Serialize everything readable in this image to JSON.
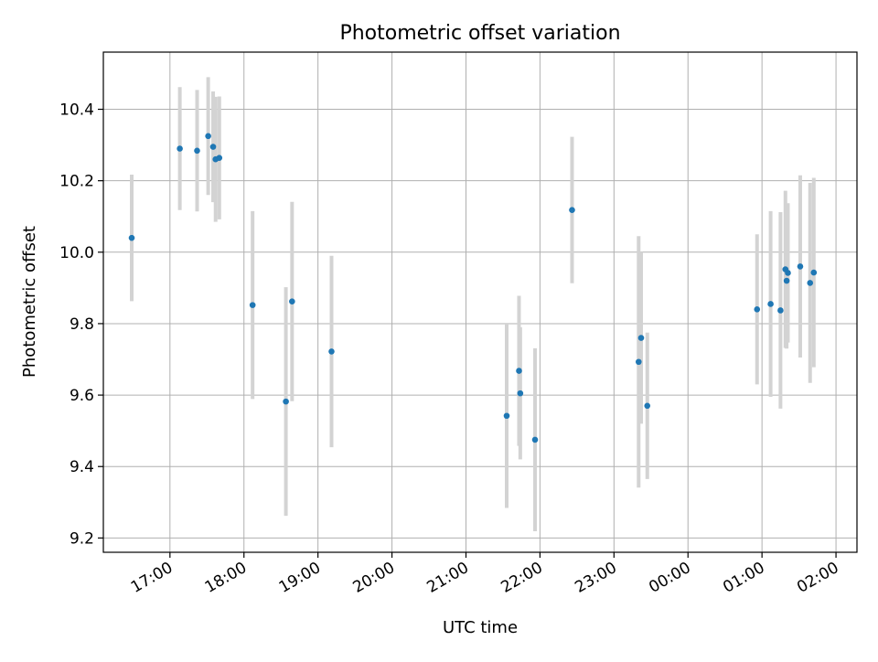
{
  "chart_data": {
    "type": "scatter",
    "title": "Photometric offset variation",
    "xlabel": "UTC time",
    "ylabel": "Photometric offset",
    "x_ticks": [
      "17:00",
      "18:00",
      "19:00",
      "20:00",
      "21:00",
      "22:00",
      "23:00",
      "00:00",
      "01:00",
      "02:00"
    ],
    "y_ticks": [
      "9.2",
      "9.4",
      "9.6",
      "9.8",
      "10.0",
      "10.2",
      "10.4"
    ],
    "xlim": [
      "16:06",
      "02:17"
    ],
    "ylim": [
      9.16,
      10.56
    ],
    "grid": true,
    "marker_color": "#1f77b4",
    "errorbar_color": "#d3d3d3",
    "points": [
      {
        "time": "16:29",
        "y": 10.04,
        "err": 0.177
      },
      {
        "time": "17:08",
        "y": 10.29,
        "err": 0.172
      },
      {
        "time": "17:22",
        "y": 10.284,
        "err": 0.17
      },
      {
        "time": "17:31",
        "y": 10.325,
        "err": 0.165
      },
      {
        "time": "17:35",
        "y": 10.295,
        "err": 0.155
      },
      {
        "time": "17:37",
        "y": 10.26,
        "err": 0.175
      },
      {
        "time": "17:40",
        "y": 10.264,
        "err": 0.172
      },
      {
        "time": "18:07",
        "y": 9.852,
        "err": 0.263
      },
      {
        "time": "18:34",
        "y": 9.582,
        "err": 0.32
      },
      {
        "time": "18:39",
        "y": 9.862,
        "err": 0.279
      },
      {
        "time": "19:11",
        "y": 9.722,
        "err": 0.268
      },
      {
        "time": "21:33",
        "y": 9.542,
        "err": 0.258
      },
      {
        "time": "21:43",
        "y": 9.668,
        "err": 0.21
      },
      {
        "time": "21:44",
        "y": 9.605,
        "err": 0.185
      },
      {
        "time": "21:56",
        "y": 9.475,
        "err": 0.256
      },
      {
        "time": "22:26",
        "y": 10.118,
        "err": 0.205
      },
      {
        "time": "23:20",
        "y": 9.693,
        "err": 0.352
      },
      {
        "time": "23:22",
        "y": 9.76,
        "err": 0.24
      },
      {
        "time": "23:27",
        "y": 9.57,
        "err": 0.205
      },
      {
        "time": "00:56",
        "y": 9.84,
        "err": 0.21
      },
      {
        "time": "01:07",
        "y": 9.855,
        "err": 0.26
      },
      {
        "time": "01:15",
        "y": 9.837,
        "err": 0.275
      },
      {
        "time": "01:19",
        "y": 9.952,
        "err": 0.22
      },
      {
        "time": "01:20",
        "y": 9.92,
        "err": 0.19
      },
      {
        "time": "01:21",
        "y": 9.942,
        "err": 0.195
      },
      {
        "time": "01:31",
        "y": 9.96,
        "err": 0.255
      },
      {
        "time": "01:39",
        "y": 9.914,
        "err": 0.28
      },
      {
        "time": "01:42",
        "y": 9.943,
        "err": 0.265
      }
    ]
  }
}
